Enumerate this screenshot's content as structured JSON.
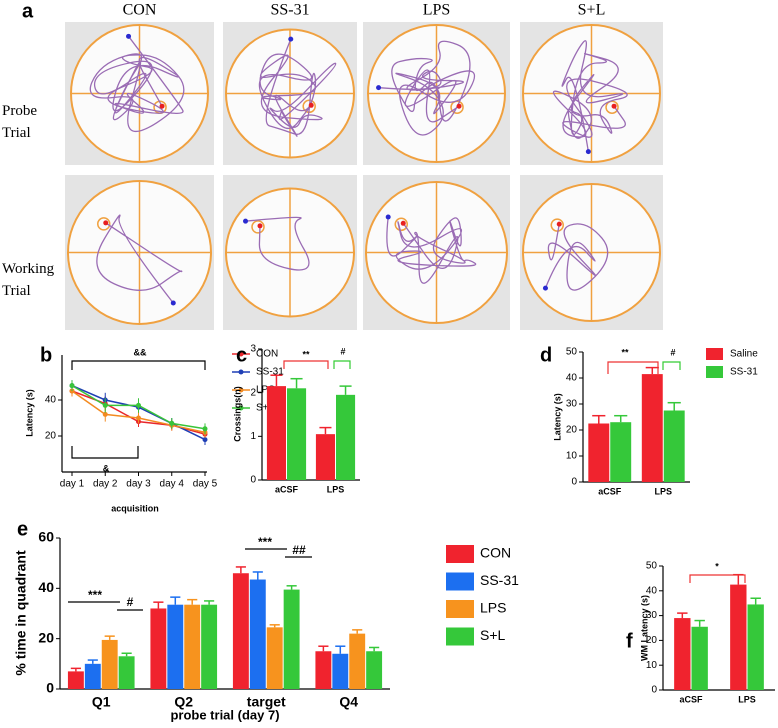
{
  "figure_a": {
    "panel": "a",
    "columns": [
      "CON",
      "SS-31",
      "LPS",
      "S+L"
    ],
    "rows": [
      "Probe Trial",
      "Working Trial"
    ]
  },
  "chart_data": [
    {
      "panel": "b",
      "type": "line",
      "categories": [
        "day 1",
        "day 2",
        "day 3",
        "day 4",
        "day 5"
      ],
      "xlabel": "acquisition",
      "ylabel": "Latency (s)",
      "ylim": [
        0,
        65
      ],
      "yticks": [
        20,
        40
      ],
      "annotations": [
        "&&",
        "&"
      ],
      "legend": "right",
      "series": [
        {
          "name": "CON",
          "color": "#e8262b",
          "values": [
            45,
            38,
            28,
            26,
            21
          ],
          "errors": [
            3,
            4,
            3,
            3,
            3
          ]
        },
        {
          "name": "SS-31",
          "color": "#1f3fb5",
          "values": [
            48,
            40,
            36,
            27,
            18
          ],
          "errors": [
            3,
            4,
            4,
            3,
            3
          ]
        },
        {
          "name": "LPS",
          "color": "#f38a20",
          "values": [
            45,
            32,
            30,
            26,
            22
          ],
          "errors": [
            3,
            4,
            3,
            3,
            3
          ]
        },
        {
          "name": "S+L",
          "color": "#39c439",
          "values": [
            48,
            37,
            37,
            27,
            24
          ],
          "errors": [
            3,
            4,
            4,
            3,
            3
          ]
        }
      ]
    },
    {
      "panel": "c",
      "type": "bar",
      "categories": [
        "aCSF",
        "LPS"
      ],
      "ylabel": "Crossings(n)",
      "ylim": [
        0,
        3
      ],
      "yticks": [
        0,
        1,
        2,
        3
      ],
      "annotations": [
        "**",
        "#"
      ],
      "series": [
        {
          "color": "#f0232e",
          "values": [
            2.15,
            1.05
          ],
          "errors": [
            0.25,
            0.15
          ]
        },
        {
          "color": "#35c83a",
          "values": [
            2.1,
            1.95
          ],
          "errors": [
            0.22,
            0.2
          ]
        }
      ]
    },
    {
      "panel": "d",
      "type": "bar",
      "categories": [
        "aCSF",
        "LPS"
      ],
      "ylabel": "Latency (s)",
      "ylim": [
        0,
        50
      ],
      "yticks": [
        0,
        10,
        20,
        30,
        40,
        50
      ],
      "annotations": [
        "**",
        "#"
      ],
      "legend": "right",
      "series": [
        {
          "name": "Saline",
          "color": "#f0232e",
          "values": [
            22.5,
            41.5
          ],
          "errors": [
            3,
            2.5
          ]
        },
        {
          "name": "SS-31",
          "color": "#35c83a",
          "values": [
            23,
            27.5
          ],
          "errors": [
            2.5,
            3
          ]
        }
      ]
    },
    {
      "panel": "e",
      "type": "bar",
      "categories": [
        "Q1",
        "Q2",
        "target",
        "Q4"
      ],
      "xlabel": "probe trial (day 7)",
      "ylabel": "% time in quadrant",
      "ylim": [
        0,
        60
      ],
      "yticks": [
        0,
        20,
        40,
        60
      ],
      "annotations": [
        "***",
        "#",
        "***",
        "##"
      ],
      "legend": "right",
      "series": [
        {
          "name": "CON",
          "color": "#f0232e",
          "values": [
            7,
            32,
            46,
            15
          ],
          "errors": [
            1.2,
            2.5,
            2.5,
            2
          ]
        },
        {
          "name": "SS-31",
          "color": "#1c6ff0",
          "values": [
            10,
            33.5,
            43.5,
            14
          ],
          "errors": [
            1.5,
            3,
            3,
            3
          ]
        },
        {
          "name": "LPS",
          "color": "#f7931e",
          "values": [
            19.5,
            33.5,
            24.5,
            22
          ],
          "errors": [
            1.5,
            2,
            1,
            1.5
          ]
        },
        {
          "name": "S+L",
          "color": "#35c83a",
          "values": [
            13,
            33.5,
            39.5,
            15
          ],
          "errors": [
            1.2,
            1.5,
            1.5,
            1.5
          ]
        }
      ]
    },
    {
      "panel": "f",
      "type": "bar",
      "categories": [
        "aCSF",
        "LPS"
      ],
      "ylabel": "WM Latency (s)",
      "ylim": [
        0,
        50
      ],
      "yticks": [
        0,
        10,
        20,
        30,
        40,
        50
      ],
      "annotations": [
        "*"
      ],
      "series": [
        {
          "color": "#f0232e",
          "values": [
            29,
            42.5
          ],
          "errors": [
            2,
            4
          ]
        },
        {
          "color": "#35c83a",
          "values": [
            25.5,
            34.5
          ],
          "errors": [
            2.5,
            2.5
          ]
        }
      ]
    }
  ]
}
